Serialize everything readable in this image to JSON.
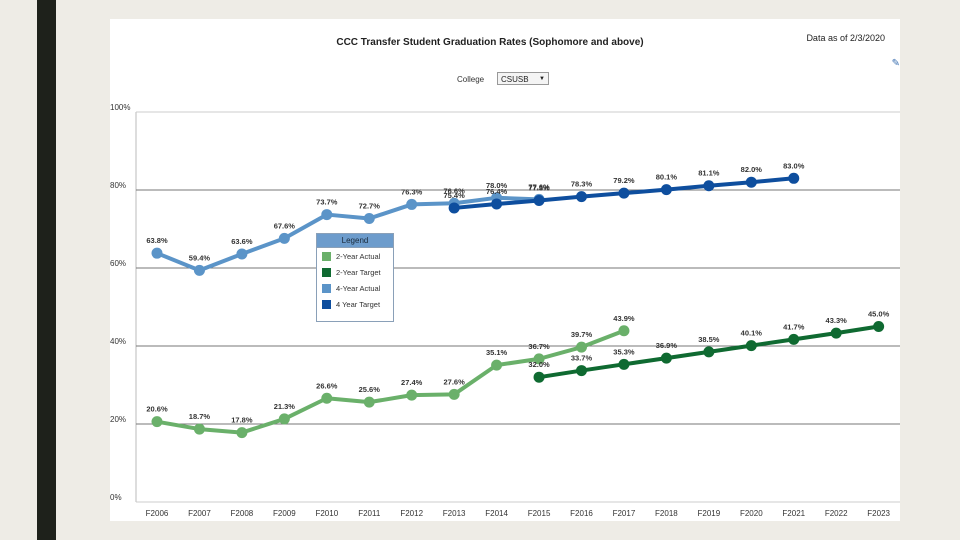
{
  "data_as_of": "Data as of 2/3/2020",
  "edit_icon": "edit-icon",
  "college_label": "College",
  "college_value": "CSUSB",
  "legend_title": "Legend",
  "colors": {
    "two_year_actual": "#6ab06a",
    "two_year_target": "#0f6a31",
    "four_year_actual": "#5b94c8",
    "four_year_target": "#0e4e9e"
  },
  "chart_data": {
    "type": "line",
    "title": "CCC Transfer Student Graduation Rates (Sophomore and above)",
    "xlabel": "",
    "ylabel": "",
    "ylim": [
      0,
      100
    ],
    "y_ticks": [
      "0%",
      "20%",
      "40%",
      "60%",
      "80%",
      "100%"
    ],
    "grid": true,
    "legend_position": "center-left",
    "categories": [
      "F2006",
      "F2007",
      "F2008",
      "F2009",
      "F2010",
      "F2011",
      "F2012",
      "F2013",
      "F2014",
      "F2015",
      "F2016",
      "F2017",
      "F2018",
      "F2019",
      "F2020",
      "F2021",
      "F2022",
      "F2023"
    ],
    "series": [
      {
        "key": "four_year_actual",
        "name": "4-Year Actual",
        "values": [
          63.8,
          59.4,
          63.6,
          67.6,
          73.7,
          72.7,
          76.3,
          76.6,
          78.0,
          77.6,
          null,
          null,
          null,
          null,
          null,
          null,
          null,
          null
        ],
        "labels": [
          "63.8%",
          "59.4%",
          "63.6%",
          "67.6%",
          "73.7%",
          "72.7%",
          "76.3%",
          "76.6%",
          "78.0%",
          "77.6%",
          null,
          null,
          null,
          null,
          null,
          null,
          null,
          null
        ]
      },
      {
        "key": "four_year_target",
        "name": "4 Year Target",
        "values": [
          null,
          null,
          null,
          null,
          null,
          null,
          null,
          75.4,
          76.4,
          77.3,
          78.3,
          79.2,
          80.1,
          81.1,
          82.0,
          83.0,
          null,
          null
        ],
        "labels": [
          null,
          null,
          null,
          null,
          null,
          null,
          null,
          "75.4%",
          "76.4%",
          "77.3%",
          "78.3%",
          "79.2%",
          "80.1%",
          "81.1%",
          "82.0%",
          "83.0%",
          null,
          null
        ]
      },
      {
        "key": "two_year_actual",
        "name": "2-Year Actual",
        "values": [
          20.6,
          18.7,
          17.8,
          21.3,
          26.6,
          25.6,
          27.4,
          27.6,
          35.1,
          36.7,
          39.7,
          43.9,
          null,
          null,
          null,
          null,
          null,
          null
        ],
        "labels": [
          "20.6%",
          "18.7%",
          "17.8%",
          "21.3%",
          "26.6%",
          "25.6%",
          "27.4%",
          "27.6%",
          "35.1%",
          "36.7%",
          "39.7%",
          "43.9%",
          null,
          null,
          null,
          null,
          null,
          null
        ]
      },
      {
        "key": "two_year_target",
        "name": "2-Year Target",
        "values": [
          null,
          null,
          null,
          null,
          null,
          null,
          null,
          null,
          null,
          32.0,
          33.7,
          35.3,
          36.9,
          38.5,
          40.1,
          41.7,
          43.3,
          45.0
        ],
        "labels": [
          null,
          null,
          null,
          null,
          null,
          null,
          null,
          null,
          null,
          "32.0%",
          "33.7%",
          "35.3%",
          "36.9%",
          "38.5%",
          "40.1%",
          "41.7%",
          "43.3%",
          "45.0%"
        ]
      }
    ]
  }
}
